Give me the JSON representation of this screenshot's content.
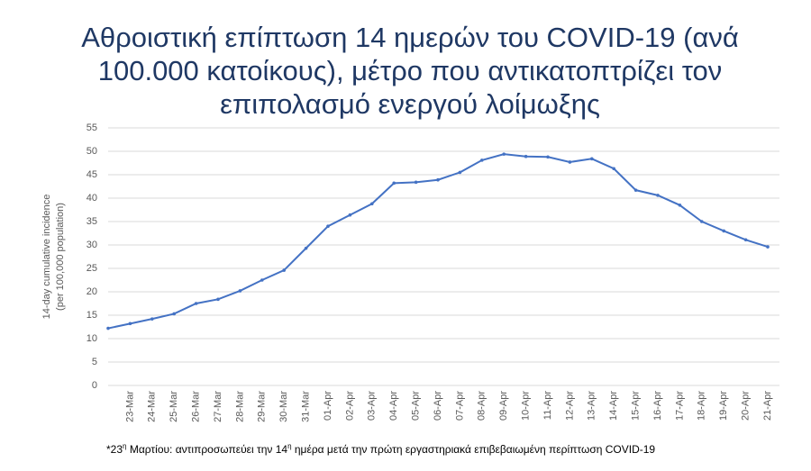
{
  "chart_data": {
    "type": "line",
    "title": [
      "Αθροιστική επίπτωση 14 ημερών του COVID-19 (ανά",
      "100.000 κατοίκους), μέτρο που αντικατοπτρίζει τον",
      "επιπολασμό ενεργού λοίμωξης"
    ],
    "ylabel": [
      "14-day cumulative incidence",
      "(per 100,000 population)"
    ],
    "footnote": [
      "*23",
      "η",
      " Μαρτίου: αντιπροσωπεύει την 14",
      "η",
      " ημέρα μετά την πρώτη εργαστηριακά επιβεβαιωμένη περίπτωση COVID-19"
    ],
    "categories": [
      null,
      "23-Mar",
      "24-Mar",
      "25-Mar",
      "26-Mar",
      "27-Mar",
      "28-Mar",
      "29-Mar",
      "30-Mar",
      "31-Mar",
      "01-Apr",
      "02-Apr",
      "03-Apr",
      "04-Apr",
      "05-Apr",
      "06-Apr",
      "07-Apr",
      "08-Apr",
      "09-Apr",
      "10-Apr",
      "11-Apr",
      "12-Apr",
      "13-Apr",
      "14-Apr",
      "15-Apr",
      "16-Apr",
      "17-Apr",
      "18-Apr",
      "19-Apr",
      "20-Apr",
      "21-Apr"
    ],
    "series": [
      {
        "name": "14-day cumulative incidence",
        "color": "#4472c4",
        "values": [
          12.2,
          13.2,
          14.2,
          15.3,
          17.5,
          18.4,
          20.2,
          22.5,
          24.6,
          29.3,
          34,
          36.4,
          38.8,
          43.2,
          43.4,
          43.9,
          45.5,
          48.1,
          49.4,
          48.9,
          48.8,
          47.7,
          48.4,
          46.3,
          41.7,
          40.6,
          38.5,
          35,
          33,
          31.1,
          29.6
        ]
      }
    ],
    "ylim": [
      0,
      55
    ],
    "yticks": [
      0,
      5,
      10,
      15,
      20,
      25,
      30,
      35,
      40,
      45,
      50,
      55
    ],
    "grid": true
  }
}
